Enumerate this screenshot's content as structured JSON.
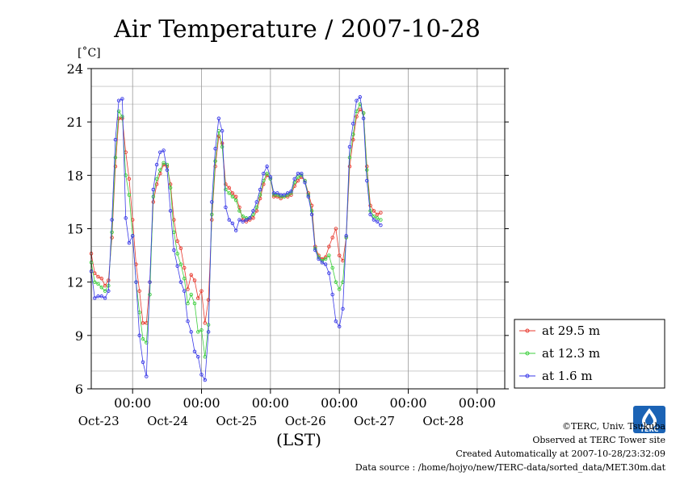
{
  "chart_data": {
    "type": "line",
    "title": "Air Temperature / 2007-10-28",
    "ylabel": "[˚C]",
    "xlabel": "(LST)",
    "ylim": [
      6,
      24
    ],
    "yticks": [
      6,
      9,
      12,
      15,
      18,
      21,
      24
    ],
    "x_domain_days": [
      22.4,
      28.4
    ],
    "x_ticks": [
      {
        "day": 23,
        "time": "00:00",
        "date": "Oct-23"
      },
      {
        "day": 24,
        "time": "00:00",
        "date": "Oct-24"
      },
      {
        "day": 25,
        "time": "00:00",
        "date": "Oct-25"
      },
      {
        "day": 26,
        "time": "00:00",
        "date": "Oct-26"
      },
      {
        "day": 27,
        "time": "00:00",
        "date": "Oct-27"
      },
      {
        "day": 28,
        "time": "00:00",
        "date": "Oct-28"
      }
    ],
    "legend_position": "right",
    "series": [
      {
        "name": "at 29.5 m",
        "color": "#e8392e",
        "points": [
          [
            22.4,
            13.6
          ],
          [
            22.45,
            12.5
          ],
          [
            22.5,
            12.3
          ],
          [
            22.55,
            12.2
          ],
          [
            22.6,
            11.8
          ],
          [
            22.65,
            12.1
          ],
          [
            22.7,
            14.5
          ],
          [
            22.75,
            18.5
          ],
          [
            22.8,
            21.2
          ],
          [
            22.85,
            21.2
          ],
          [
            22.9,
            19.3
          ],
          [
            22.95,
            17.8
          ],
          [
            23.0,
            15.5
          ],
          [
            23.05,
            13.0
          ],
          [
            23.1,
            11.5
          ],
          [
            23.15,
            9.7
          ],
          [
            23.2,
            9.7
          ],
          [
            23.25,
            12.0
          ],
          [
            23.3,
            16.5
          ],
          [
            23.35,
            17.5
          ],
          [
            23.4,
            18.1
          ],
          [
            23.45,
            18.6
          ],
          [
            23.5,
            18.5
          ],
          [
            23.55,
            17.5
          ],
          [
            23.6,
            15.5
          ],
          [
            23.65,
            14.3
          ],
          [
            23.7,
            13.9
          ],
          [
            23.75,
            12.8
          ],
          [
            23.8,
            11.6
          ],
          [
            23.85,
            12.4
          ],
          [
            23.9,
            12.1
          ],
          [
            23.95,
            11.1
          ],
          [
            24.0,
            11.5
          ],
          [
            24.05,
            9.7
          ],
          [
            24.1,
            11.0
          ],
          [
            24.15,
            15.5
          ],
          [
            24.2,
            18.5
          ],
          [
            24.25,
            20.2
          ],
          [
            24.3,
            19.8
          ],
          [
            24.35,
            17.5
          ],
          [
            24.4,
            17.3
          ],
          [
            24.45,
            17.0
          ],
          [
            24.5,
            16.8
          ],
          [
            24.55,
            16.2
          ],
          [
            24.6,
            15.5
          ],
          [
            24.65,
            15.4
          ],
          [
            24.7,
            15.5
          ],
          [
            24.75,
            15.6
          ],
          [
            24.8,
            16.0
          ],
          [
            24.85,
            16.7
          ],
          [
            24.9,
            17.5
          ],
          [
            24.95,
            18.0
          ],
          [
            25.0,
            17.8
          ],
          [
            25.05,
            16.8
          ],
          [
            25.1,
            16.8
          ],
          [
            25.15,
            16.7
          ],
          [
            25.2,
            16.8
          ],
          [
            25.25,
            16.8
          ],
          [
            25.3,
            16.9
          ],
          [
            25.35,
            17.4
          ],
          [
            25.4,
            17.7
          ],
          [
            25.45,
            17.9
          ],
          [
            25.5,
            17.7
          ],
          [
            25.55,
            17.0
          ],
          [
            25.6,
            16.3
          ],
          [
            25.65,
            14.0
          ],
          [
            25.7,
            13.5
          ],
          [
            25.75,
            13.3
          ],
          [
            25.8,
            13.4
          ],
          [
            25.85,
            14.0
          ],
          [
            25.9,
            14.5
          ],
          [
            25.95,
            15.0
          ],
          [
            26.0,
            13.5
          ],
          [
            26.05,
            13.2
          ],
          [
            26.1,
            14.5
          ],
          [
            26.15,
            18.5
          ],
          [
            26.2,
            20.0
          ],
          [
            26.25,
            21.3
          ],
          [
            26.3,
            21.7
          ],
          [
            26.35,
            21.5
          ],
          [
            26.4,
            18.5
          ],
          [
            26.45,
            16.3
          ],
          [
            26.5,
            16.0
          ],
          [
            26.55,
            15.8
          ],
          [
            26.6,
            15.9
          ]
        ]
      },
      {
        "name": "at 12.3 m",
        "color": "#3ccf3c",
        "points": [
          [
            22.4,
            13.1
          ],
          [
            22.45,
            12.0
          ],
          [
            22.5,
            11.9
          ],
          [
            22.55,
            11.7
          ],
          [
            22.6,
            11.5
          ],
          [
            22.65,
            11.8
          ],
          [
            22.7,
            14.8
          ],
          [
            22.75,
            19.0
          ],
          [
            22.8,
            21.6
          ],
          [
            22.85,
            21.3
          ],
          [
            22.9,
            18.0
          ],
          [
            22.95,
            16.9
          ],
          [
            23.0,
            14.6
          ],
          [
            23.05,
            12.0
          ],
          [
            23.1,
            10.3
          ],
          [
            23.15,
            8.8
          ],
          [
            23.2,
            8.6
          ],
          [
            23.25,
            11.3
          ],
          [
            23.3,
            16.8
          ],
          [
            23.35,
            17.8
          ],
          [
            23.4,
            18.3
          ],
          [
            23.45,
            18.7
          ],
          [
            23.5,
            18.6
          ],
          [
            23.55,
            17.3
          ],
          [
            23.6,
            14.8
          ],
          [
            23.65,
            13.6
          ],
          [
            23.7,
            13.0
          ],
          [
            23.75,
            12.2
          ],
          [
            23.8,
            10.8
          ],
          [
            23.85,
            11.3
          ],
          [
            23.9,
            10.8
          ],
          [
            23.95,
            9.2
          ],
          [
            24.0,
            9.3
          ],
          [
            24.05,
            7.8
          ],
          [
            24.1,
            9.6
          ],
          [
            24.15,
            15.8
          ],
          [
            24.2,
            18.8
          ],
          [
            24.25,
            20.5
          ],
          [
            24.3,
            19.6
          ],
          [
            24.35,
            17.2
          ],
          [
            24.4,
            17.0
          ],
          [
            24.45,
            16.8
          ],
          [
            24.5,
            16.6
          ],
          [
            24.55,
            16.0
          ],
          [
            24.6,
            15.7
          ],
          [
            24.65,
            15.6
          ],
          [
            24.7,
            15.6
          ],
          [
            24.75,
            15.8
          ],
          [
            24.8,
            16.2
          ],
          [
            24.85,
            16.9
          ],
          [
            24.9,
            17.7
          ],
          [
            24.95,
            18.1
          ],
          [
            25.0,
            17.8
          ],
          [
            25.05,
            16.9
          ],
          [
            25.1,
            16.9
          ],
          [
            25.15,
            16.8
          ],
          [
            25.2,
            16.8
          ],
          [
            25.25,
            16.9
          ],
          [
            25.3,
            17.0
          ],
          [
            25.35,
            17.6
          ],
          [
            25.4,
            17.9
          ],
          [
            25.45,
            18.0
          ],
          [
            25.5,
            17.7
          ],
          [
            25.55,
            16.9
          ],
          [
            25.6,
            16.0
          ],
          [
            25.65,
            13.9
          ],
          [
            25.7,
            13.4
          ],
          [
            25.75,
            13.2
          ],
          [
            25.8,
            13.3
          ],
          [
            25.85,
            13.5
          ],
          [
            25.9,
            12.8
          ],
          [
            25.95,
            12.0
          ],
          [
            26.0,
            11.6
          ],
          [
            26.05,
            12.0
          ],
          [
            26.1,
            14.5
          ],
          [
            26.15,
            19.0
          ],
          [
            26.2,
            20.3
          ],
          [
            26.25,
            21.6
          ],
          [
            26.3,
            22.0
          ],
          [
            26.35,
            21.5
          ],
          [
            26.4,
            18.3
          ],
          [
            26.45,
            16.0
          ],
          [
            26.5,
            15.7
          ],
          [
            26.55,
            15.6
          ],
          [
            26.6,
            15.5
          ]
        ]
      },
      {
        "name": "at 1.6 m",
        "color": "#3a3ae8",
        "points": [
          [
            22.4,
            12.6
          ],
          [
            22.45,
            11.1
          ],
          [
            22.5,
            11.2
          ],
          [
            22.55,
            11.2
          ],
          [
            22.6,
            11.1
          ],
          [
            22.65,
            11.5
          ],
          [
            22.7,
            15.5
          ],
          [
            22.75,
            20.0
          ],
          [
            22.8,
            22.2
          ],
          [
            22.85,
            22.3
          ],
          [
            22.9,
            15.6
          ],
          [
            22.95,
            14.2
          ],
          [
            23.0,
            14.6
          ],
          [
            23.05,
            12.0
          ],
          [
            23.1,
            9.0
          ],
          [
            23.15,
            7.5
          ],
          [
            23.2,
            6.7
          ],
          [
            23.25,
            12.0
          ],
          [
            23.3,
            17.2
          ],
          [
            23.35,
            18.6
          ],
          [
            23.4,
            19.3
          ],
          [
            23.45,
            19.4
          ],
          [
            23.5,
            18.3
          ],
          [
            23.55,
            16.0
          ],
          [
            23.6,
            13.8
          ],
          [
            23.65,
            12.9
          ],
          [
            23.7,
            12.0
          ],
          [
            23.75,
            11.5
          ],
          [
            23.8,
            9.8
          ],
          [
            23.85,
            9.2
          ],
          [
            23.9,
            8.1
          ],
          [
            23.95,
            7.8
          ],
          [
            24.0,
            6.8
          ],
          [
            24.05,
            6.5
          ],
          [
            24.1,
            9.2
          ],
          [
            24.15,
            16.5
          ],
          [
            24.2,
            19.5
          ],
          [
            24.25,
            21.2
          ],
          [
            24.3,
            20.5
          ],
          [
            24.35,
            16.2
          ],
          [
            24.4,
            15.5
          ],
          [
            24.45,
            15.3
          ],
          [
            24.5,
            14.9
          ],
          [
            24.55,
            15.5
          ],
          [
            24.6,
            15.4
          ],
          [
            24.65,
            15.5
          ],
          [
            24.7,
            15.6
          ],
          [
            24.75,
            16.0
          ],
          [
            24.8,
            16.5
          ],
          [
            24.85,
            17.2
          ],
          [
            24.9,
            18.1
          ],
          [
            24.95,
            18.5
          ],
          [
            25.0,
            17.9
          ],
          [
            25.05,
            17.0
          ],
          [
            25.1,
            17.0
          ],
          [
            25.15,
            16.9
          ],
          [
            25.2,
            16.9
          ],
          [
            25.25,
            17.0
          ],
          [
            25.3,
            17.1
          ],
          [
            25.35,
            17.8
          ],
          [
            25.4,
            18.1
          ],
          [
            25.45,
            18.1
          ],
          [
            25.5,
            17.6
          ],
          [
            25.55,
            16.8
          ],
          [
            25.6,
            15.8
          ],
          [
            25.65,
            13.8
          ],
          [
            25.7,
            13.3
          ],
          [
            25.75,
            13.1
          ],
          [
            25.8,
            13.0
          ],
          [
            25.85,
            12.5
          ],
          [
            25.9,
            11.3
          ],
          [
            25.95,
            9.8
          ],
          [
            26.0,
            9.5
          ],
          [
            26.05,
            10.5
          ],
          [
            26.1,
            14.6
          ],
          [
            26.15,
            19.6
          ],
          [
            26.2,
            20.9
          ],
          [
            26.25,
            22.2
          ],
          [
            26.3,
            22.4
          ],
          [
            26.35,
            21.2
          ],
          [
            26.4,
            17.7
          ],
          [
            26.45,
            15.8
          ],
          [
            26.5,
            15.5
          ],
          [
            26.55,
            15.4
          ],
          [
            26.6,
            15.2
          ]
        ]
      }
    ]
  },
  "credits": {
    "copyright": "©TERC, Univ. Tsukuba",
    "observed": "Observed at TERC Tower site",
    "created": "Created Automatically at 2007-10-28/23:32:09",
    "source": "Data source : /home/hojyo/new/TERC-data/sorted_data/MET.30m.dat"
  },
  "logo": {
    "text": "TERC"
  }
}
